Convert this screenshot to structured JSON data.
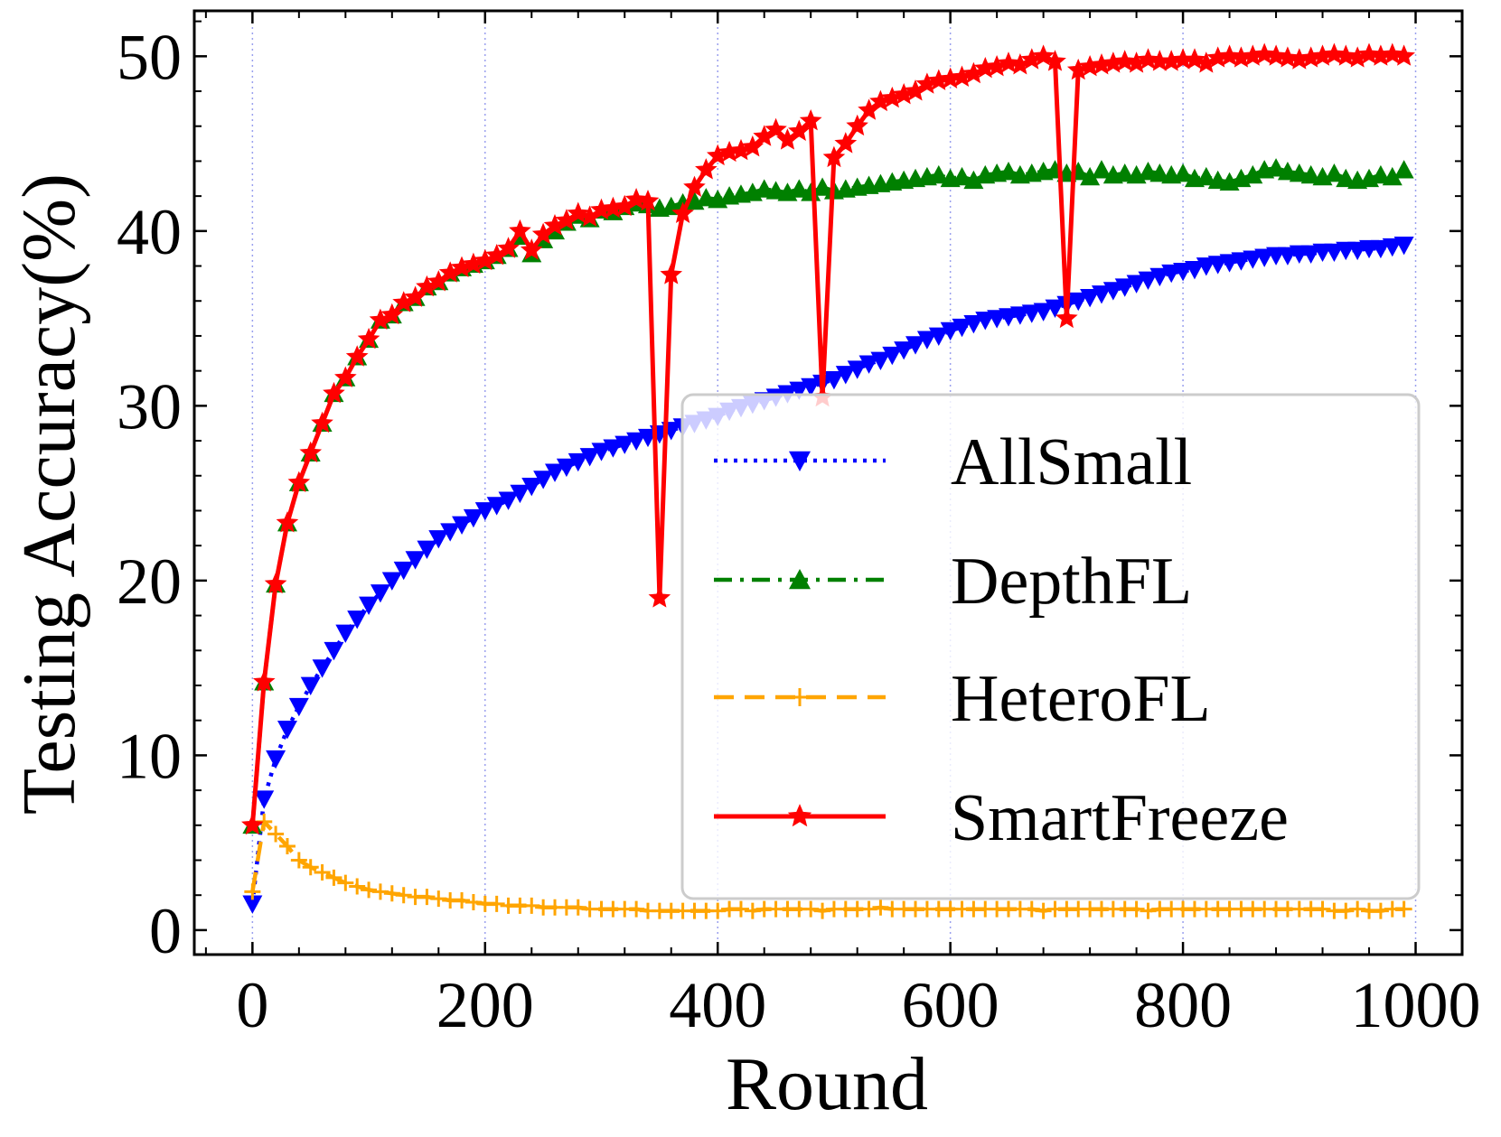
{
  "chart_data": {
    "type": "line",
    "title": "",
    "xlabel": "Round",
    "ylabel": "Testing Accuracy(%)",
    "xlim": [
      -50,
      1040
    ],
    "ylim": [
      -1.4,
      52.6
    ],
    "xticks": [
      0,
      200,
      400,
      600,
      800,
      1000
    ],
    "yticks": [
      0,
      10,
      20,
      30,
      40,
      50
    ],
    "xtick_labels": [
      "0",
      "200",
      "400",
      "600",
      "800",
      "1000"
    ],
    "ytick_labels": [
      "0",
      "10",
      "20",
      "30",
      "40",
      "50"
    ],
    "grid": "vertical dotted",
    "legend_position": "center-right",
    "series": [
      {
        "name": "AllSmall",
        "color": "#0000ff",
        "linestyle": "dotted",
        "marker": "triangle-down",
        "x": [
          0,
          10,
          20,
          30,
          40,
          50,
          60,
          70,
          80,
          90,
          100,
          110,
          120,
          130,
          140,
          150,
          160,
          170,
          180,
          190,
          200,
          210,
          220,
          230,
          240,
          250,
          260,
          270,
          280,
          290,
          300,
          310,
          320,
          330,
          340,
          350,
          360,
          370,
          380,
          390,
          400,
          410,
          420,
          430,
          440,
          450,
          460,
          470,
          480,
          490,
          500,
          510,
          520,
          530,
          540,
          550,
          560,
          570,
          580,
          590,
          600,
          610,
          620,
          630,
          640,
          650,
          660,
          670,
          680,
          690,
          700,
          710,
          720,
          730,
          740,
          750,
          760,
          770,
          780,
          790,
          800,
          810,
          820,
          830,
          840,
          850,
          860,
          870,
          880,
          890,
          900,
          910,
          920,
          930,
          940,
          950,
          960,
          970,
          980,
          990
        ],
        "y": [
          1.5,
          7.5,
          9.8,
          11.5,
          12.8,
          14.0,
          15.0,
          16.0,
          17.0,
          17.8,
          18.6,
          19.3,
          20.0,
          20.6,
          21.2,
          21.8,
          22.4,
          22.8,
          23.2,
          23.6,
          24.0,
          24.3,
          24.6,
          25.0,
          25.4,
          25.8,
          26.2,
          26.5,
          26.8,
          27.1,
          27.4,
          27.6,
          27.8,
          28.0,
          28.2,
          28.4,
          28.6,
          28.8,
          29.0,
          29.2,
          29.4,
          29.7,
          29.9,
          30.1,
          30.3,
          30.5,
          30.7,
          30.9,
          31.1,
          31.3,
          31.5,
          31.8,
          32.1,
          32.4,
          32.6,
          32.9,
          33.2,
          33.5,
          33.8,
          34.0,
          34.3,
          34.5,
          34.7,
          34.9,
          35.0,
          35.1,
          35.2,
          35.3,
          35.4,
          35.6,
          35.8,
          36.0,
          36.2,
          36.4,
          36.6,
          36.8,
          37.0,
          37.2,
          37.4,
          37.6,
          37.7,
          37.8,
          38.0,
          38.1,
          38.2,
          38.3,
          38.4,
          38.5,
          38.6,
          38.6,
          38.7,
          38.7,
          38.8,
          38.8,
          38.9,
          38.9,
          39.0,
          39.0,
          39.1,
          39.2
        ]
      },
      {
        "name": "DepthFL",
        "color": "#008000",
        "linestyle": "dashdot",
        "marker": "triangle-up",
        "x": [
          0,
          10,
          20,
          30,
          40,
          50,
          60,
          70,
          80,
          90,
          100,
          110,
          120,
          130,
          140,
          150,
          160,
          170,
          180,
          190,
          200,
          210,
          220,
          230,
          240,
          250,
          260,
          270,
          280,
          290,
          300,
          310,
          320,
          330,
          340,
          350,
          360,
          370,
          380,
          390,
          400,
          410,
          420,
          430,
          440,
          450,
          460,
          470,
          480,
          490,
          500,
          510,
          520,
          530,
          540,
          550,
          560,
          570,
          580,
          590,
          600,
          610,
          620,
          630,
          640,
          650,
          660,
          670,
          680,
          690,
          700,
          710,
          720,
          730,
          740,
          750,
          760,
          770,
          780,
          790,
          800,
          810,
          820,
          830,
          840,
          850,
          860,
          870,
          880,
          890,
          900,
          910,
          920,
          930,
          940,
          950,
          960,
          970,
          980,
          990
        ],
        "y": [
          6.0,
          14.2,
          19.8,
          23.3,
          25.6,
          27.3,
          29.0,
          30.7,
          31.6,
          32.8,
          33.8,
          34.9,
          35.2,
          35.9,
          36.2,
          36.8,
          37.1,
          37.6,
          37.9,
          38.1,
          38.3,
          38.6,
          39.0,
          39.7,
          38.7,
          39.5,
          40.0,
          40.5,
          40.9,
          40.7,
          41.2,
          41.1,
          41.4,
          41.6,
          41.5,
          41.3,
          41.4,
          41.6,
          41.7,
          41.9,
          41.8,
          42.0,
          42.1,
          42.2,
          42.4,
          42.3,
          42.2,
          42.4,
          42.2,
          42.5,
          42.3,
          42.4,
          42.5,
          42.6,
          42.7,
          42.8,
          42.9,
          43.0,
          43.1,
          43.2,
          43.0,
          43.1,
          42.9,
          43.2,
          43.3,
          43.4,
          43.2,
          43.3,
          43.4,
          43.5,
          43.3,
          43.4,
          43.1,
          43.5,
          43.2,
          43.3,
          43.2,
          43.4,
          43.3,
          43.2,
          43.3,
          43.0,
          43.1,
          42.9,
          42.8,
          43.0,
          43.2,
          43.5,
          43.6,
          43.4,
          43.3,
          43.2,
          43.1,
          43.3,
          43.0,
          42.9,
          43.0,
          43.2,
          43.1,
          43.5
        ]
      },
      {
        "name": "HeteroFL",
        "color": "#ffa500",
        "linestyle": "dashed",
        "marker": "plus",
        "x": [
          0,
          10,
          20,
          30,
          40,
          50,
          60,
          70,
          80,
          90,
          100,
          110,
          120,
          130,
          140,
          150,
          160,
          170,
          180,
          190,
          200,
          210,
          220,
          230,
          240,
          250,
          260,
          270,
          280,
          290,
          300,
          310,
          320,
          330,
          340,
          350,
          360,
          370,
          380,
          390,
          400,
          410,
          420,
          430,
          440,
          450,
          460,
          470,
          480,
          490,
          500,
          510,
          520,
          530,
          540,
          550,
          560,
          570,
          580,
          590,
          600,
          610,
          620,
          630,
          640,
          650,
          660,
          670,
          680,
          690,
          700,
          710,
          720,
          730,
          740,
          750,
          760,
          770,
          780,
          790,
          800,
          810,
          820,
          830,
          840,
          850,
          860,
          870,
          880,
          890,
          900,
          910,
          920,
          930,
          940,
          950,
          960,
          970,
          980,
          990
        ],
        "y": [
          2.2,
          6.2,
          5.5,
          4.8,
          4.0,
          3.6,
          3.3,
          3.0,
          2.7,
          2.5,
          2.3,
          2.2,
          2.1,
          2.0,
          1.9,
          1.9,
          1.8,
          1.7,
          1.7,
          1.6,
          1.5,
          1.5,
          1.4,
          1.4,
          1.4,
          1.3,
          1.3,
          1.3,
          1.3,
          1.2,
          1.2,
          1.2,
          1.2,
          1.2,
          1.1,
          1.1,
          1.1,
          1.1,
          1.1,
          1.1,
          1.1,
          1.2,
          1.2,
          1.1,
          1.2,
          1.2,
          1.2,
          1.2,
          1.2,
          1.1,
          1.2,
          1.2,
          1.2,
          1.2,
          1.3,
          1.2,
          1.2,
          1.2,
          1.2,
          1.2,
          1.2,
          1.2,
          1.2,
          1.2,
          1.2,
          1.2,
          1.2,
          1.2,
          1.1,
          1.2,
          1.2,
          1.2,
          1.2,
          1.2,
          1.2,
          1.2,
          1.2,
          1.1,
          1.2,
          1.2,
          1.2,
          1.2,
          1.2,
          1.2,
          1.2,
          1.2,
          1.2,
          1.2,
          1.2,
          1.2,
          1.2,
          1.2,
          1.2,
          1.1,
          1.1,
          1.2,
          1.1,
          1.1,
          1.2,
          1.2
        ]
      },
      {
        "name": "SmartFreeze",
        "color": "#ff0000",
        "linestyle": "solid",
        "marker": "star",
        "x": [
          0,
          10,
          20,
          30,
          40,
          50,
          60,
          70,
          80,
          90,
          100,
          110,
          120,
          130,
          140,
          150,
          160,
          170,
          180,
          190,
          200,
          210,
          220,
          230,
          240,
          250,
          260,
          270,
          280,
          290,
          300,
          310,
          320,
          330,
          340,
          350,
          360,
          370,
          380,
          390,
          400,
          410,
          420,
          430,
          440,
          450,
          460,
          470,
          480,
          490,
          500,
          510,
          520,
          530,
          540,
          550,
          560,
          570,
          580,
          590,
          600,
          610,
          620,
          630,
          640,
          650,
          660,
          670,
          680,
          690,
          700,
          710,
          720,
          730,
          740,
          750,
          760,
          770,
          780,
          790,
          800,
          810,
          820,
          830,
          840,
          850,
          860,
          870,
          880,
          890,
          900,
          910,
          920,
          930,
          940,
          950,
          960,
          970,
          980,
          990
        ],
        "y": [
          6.0,
          14.2,
          19.8,
          23.3,
          25.6,
          27.3,
          29.0,
          30.7,
          31.6,
          32.8,
          33.8,
          34.9,
          35.2,
          35.9,
          36.2,
          36.8,
          37.1,
          37.6,
          37.9,
          38.1,
          38.3,
          38.6,
          39.0,
          40.0,
          38.9,
          39.8,
          40.3,
          40.6,
          41.0,
          40.8,
          41.2,
          41.3,
          41.4,
          41.8,
          41.7,
          19.0,
          37.5,
          41.0,
          42.5,
          43.5,
          44.3,
          44.5,
          44.6,
          44.8,
          45.4,
          45.8,
          45.2,
          45.7,
          46.3,
          30.5,
          44.2,
          45.0,
          46.0,
          46.9,
          47.4,
          47.6,
          47.8,
          48.0,
          48.4,
          48.6,
          48.7,
          48.8,
          49.0,
          49.3,
          49.4,
          49.6,
          49.5,
          49.8,
          50.0,
          49.7,
          35.0,
          49.2,
          49.4,
          49.5,
          49.6,
          49.7,
          49.6,
          49.8,
          49.7,
          49.7,
          49.8,
          49.8,
          49.6,
          49.9,
          50.0,
          49.9,
          50.0,
          50.1,
          50.0,
          49.9,
          49.8,
          49.9,
          50.0,
          50.1,
          50.0,
          49.9,
          50.1,
          50.0,
          50.1,
          50.0
        ]
      }
    ]
  }
}
